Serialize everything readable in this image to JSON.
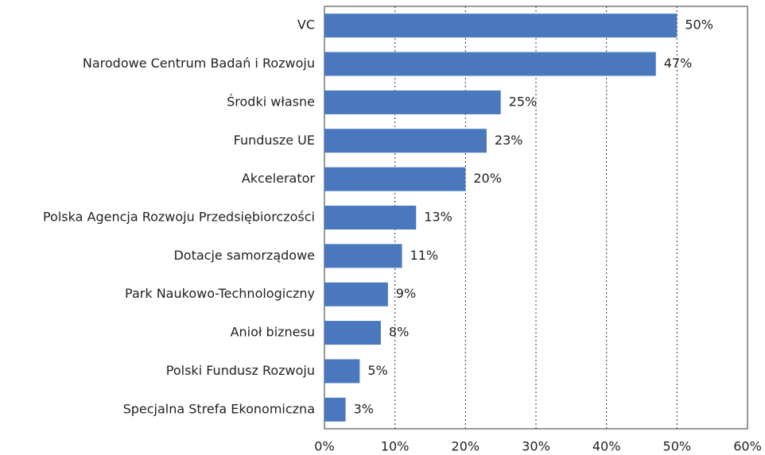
{
  "chart_data": {
    "type": "bar",
    "orientation": "horizontal",
    "categories": [
      "VC",
      "Narodowe Centrum Badań i Rozwoju",
      "Środki własne",
      "Fundusze UE",
      "Akcelerator",
      "Polska Agencja Rozwoju Przedsiębiorczości",
      "Dotacje samorządowe",
      "Park Naukowo-Technologiczny",
      "Anioł biznesu",
      "Polski Fundusz Rozwoju",
      "Specjalna Strefa Ekonomiczna"
    ],
    "values": [
      50,
      47,
      25,
      23,
      20,
      13,
      11,
      9,
      8,
      5,
      3
    ],
    "value_labels": [
      "50%",
      "47%",
      "25%",
      "23%",
      "20%",
      "13%",
      "11%",
      "9%",
      "8%",
      "5%",
      "3%"
    ],
    "color": "#4a78be",
    "xlim": [
      0,
      60
    ],
    "xticks": [
      {
        "value": 0,
        "label": "0%"
      },
      {
        "value": 10,
        "label": "10%"
      },
      {
        "value": 20,
        "label": "20%"
      },
      {
        "value": 30,
        "label": "30%"
      },
      {
        "value": 40,
        "label": "40%"
      },
      {
        "value": 50,
        "label": "50%"
      },
      {
        "value": 60,
        "label": "60%"
      }
    ],
    "grid": true
  }
}
